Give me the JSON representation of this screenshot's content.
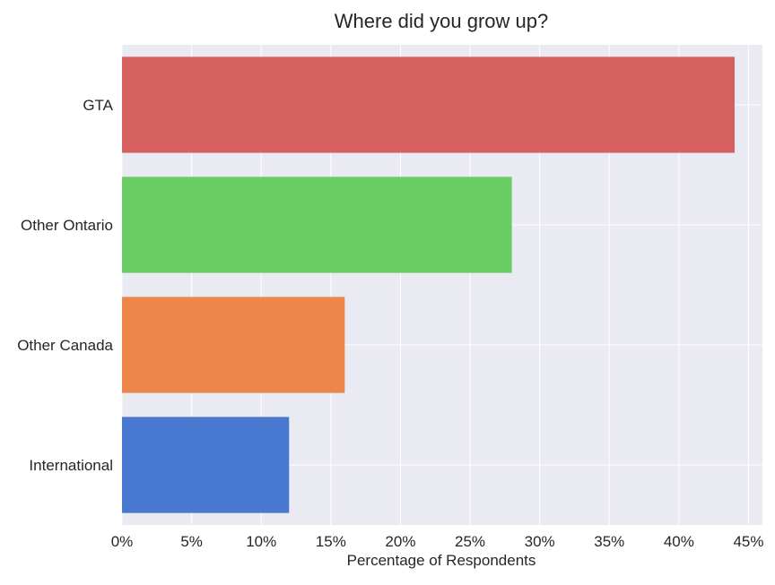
{
  "chart_data": {
    "type": "bar",
    "orientation": "horizontal",
    "title": "Where did you grow up?",
    "xlabel": "Percentage of Respondents",
    "ylabel": "",
    "categories": [
      "GTA",
      "Other Ontario",
      "Other Canada",
      "International"
    ],
    "values": [
      44,
      28,
      16,
      12
    ],
    "colors": [
      "#d65f5f",
      "#6acc64",
      "#ee854a",
      "#4878d0"
    ],
    "xlim": [
      0,
      46
    ],
    "xticks": [
      0,
      5,
      10,
      15,
      20,
      25,
      30,
      35,
      40,
      45
    ],
    "xtick_labels": [
      "0%",
      "5%",
      "10%",
      "15%",
      "20%",
      "25%",
      "30%",
      "35%",
      "40%",
      "45%"
    ],
    "grid": true,
    "background": "#eaeaf2",
    "grid_color": "#ffffff",
    "legend": "none"
  }
}
